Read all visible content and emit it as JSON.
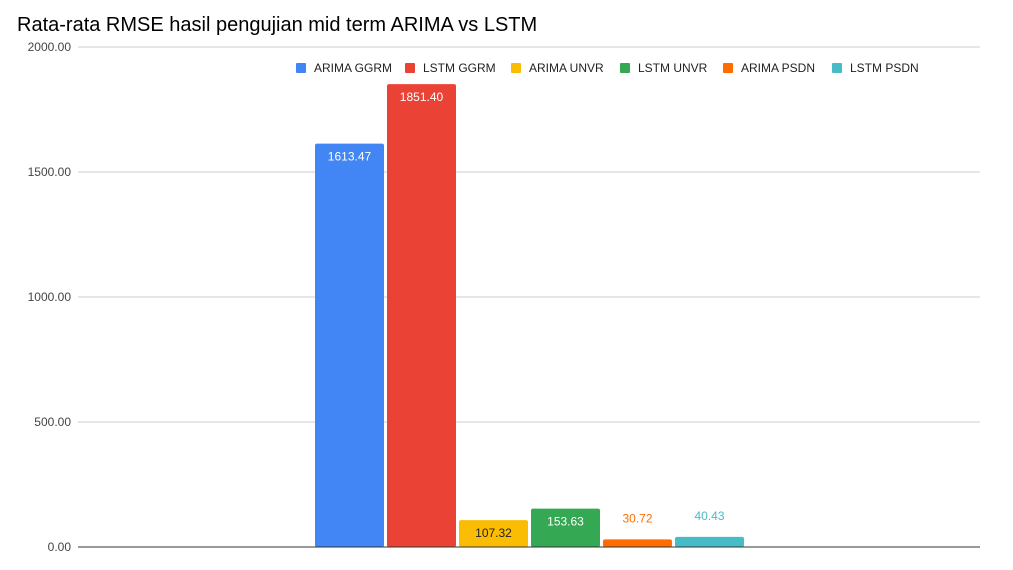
{
  "chart_data": {
    "type": "bar",
    "title": "Rata-rata RMSE hasil pengujian mid term ARIMA vs LSTM",
    "xlabel": "",
    "ylabel": "",
    "ylim": [
      0,
      2000
    ],
    "yticks": [
      "0.00",
      "500.00",
      "1000.00",
      "1500.00",
      "2000.00"
    ],
    "grid": true,
    "legend_position": "top",
    "series": [
      {
        "name": "ARIMA GGRM",
        "value": 1613.47,
        "label": "1613.47",
        "color": "#4285f4",
        "label_position": "inside",
        "label_color": "#ffffff"
      },
      {
        "name": "LSTM GGRM",
        "value": 1851.4,
        "label": "1851.40",
        "color": "#ea4335",
        "label_position": "inside",
        "label_color": "#ffffff"
      },
      {
        "name": "ARIMA UNVR",
        "value": 107.32,
        "label": "107.32",
        "color": "#fbbc04",
        "label_position": "inside",
        "label_color": "#222222"
      },
      {
        "name": "LSTM UNVR",
        "value": 153.63,
        "label": "153.63",
        "color": "#34a853",
        "label_position": "inside",
        "label_color": "#ffffff"
      },
      {
        "name": "ARIMA PSDN",
        "value": 30.72,
        "label": "30.72",
        "color": "#ff6d01",
        "label_position": "above",
        "label_color": "#ff6d01"
      },
      {
        "name": "LSTM PSDN",
        "value": 40.43,
        "label": "40.43",
        "color": "#46bdc6",
        "label_position": "above",
        "label_color": "#46bdc6"
      }
    ]
  }
}
